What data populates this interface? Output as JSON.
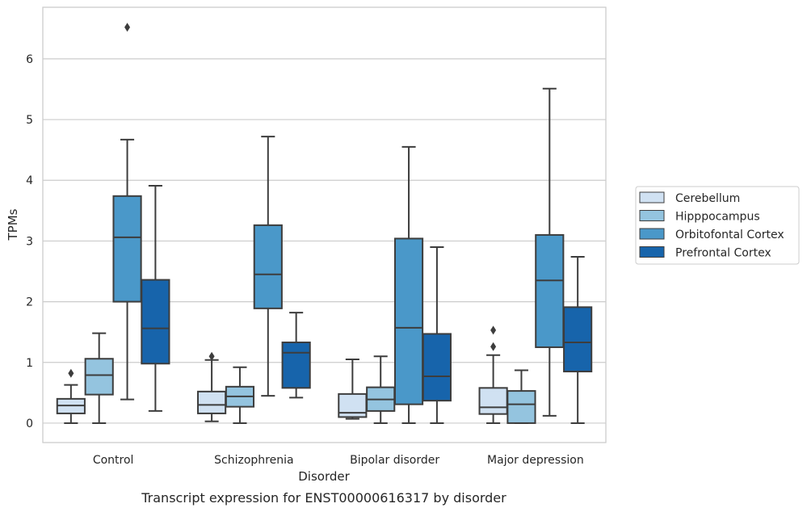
{
  "chart_data": {
    "type": "box",
    "title": "",
    "caption": "Transcript expression for ENST00000616317 by disorder",
    "xlabel": "Disorder",
    "ylabel": "TPMs",
    "ylim": [
      -0.32,
      6.85
    ],
    "yticks": [
      "0",
      "1",
      "2",
      "3",
      "4",
      "5",
      "6"
    ],
    "grid": true,
    "legend_position": "right",
    "categories": [
      "Control",
      "Schizophrenia",
      "Bipolar disorder",
      "Major depression"
    ],
    "series": [
      {
        "name": "Cerebellum",
        "color": "#d0e1f2",
        "boxes": [
          {
            "whisker_low": 0.0,
            "q1": 0.16,
            "median": 0.29,
            "q3": 0.4,
            "whisker_high": 0.63,
            "outliers": [
              0.82
            ]
          },
          {
            "whisker_low": 0.03,
            "q1": 0.16,
            "median": 0.3,
            "q3": 0.52,
            "whisker_high": 1.04,
            "outliers": [
              1.1
            ]
          },
          {
            "whisker_low": 0.07,
            "q1": 0.1,
            "median": 0.17,
            "q3": 0.48,
            "whisker_high": 1.05,
            "outliers": []
          },
          {
            "whisker_low": 0.0,
            "q1": 0.15,
            "median": 0.26,
            "q3": 0.58,
            "whisker_high": 1.12,
            "outliers": [
              1.26,
              1.53
            ]
          }
        ]
      },
      {
        "name": "Hipppocampus",
        "color": "#94c4df",
        "boxes": [
          {
            "whisker_low": 0.0,
            "q1": 0.47,
            "median": 0.79,
            "q3": 1.06,
            "whisker_high": 1.48,
            "outliers": []
          },
          {
            "whisker_low": 0.0,
            "q1": 0.27,
            "median": 0.44,
            "q3": 0.6,
            "whisker_high": 0.92,
            "outliers": []
          },
          {
            "whisker_low": 0.0,
            "q1": 0.2,
            "median": 0.39,
            "q3": 0.59,
            "whisker_high": 1.1,
            "outliers": []
          },
          {
            "whisker_low": 0.0,
            "q1": 0.0,
            "median": 0.31,
            "q3": 0.53,
            "whisker_high": 0.87,
            "outliers": []
          }
        ]
      },
      {
        "name": "Orbitofontal Cortex",
        "color": "#4a98c9",
        "boxes": [
          {
            "whisker_low": 0.39,
            "q1": 2.0,
            "median": 3.06,
            "q3": 3.74,
            "whisker_high": 4.67,
            "outliers": [
              6.52
            ]
          },
          {
            "whisker_low": 0.45,
            "q1": 1.89,
            "median": 2.45,
            "q3": 3.26,
            "whisker_high": 4.72,
            "outliers": []
          },
          {
            "whisker_low": 0.0,
            "q1": 0.31,
            "median": 1.57,
            "q3": 3.04,
            "whisker_high": 4.55,
            "outliers": []
          },
          {
            "whisker_low": 0.12,
            "q1": 1.25,
            "median": 2.35,
            "q3": 3.1,
            "whisker_high": 5.51,
            "outliers": []
          }
        ]
      },
      {
        "name": "Prefrontal Cortex",
        "color": "#1764ab",
        "boxes": [
          {
            "whisker_low": 0.2,
            "q1": 0.98,
            "median": 1.56,
            "q3": 2.36,
            "whisker_high": 3.91,
            "outliers": []
          },
          {
            "whisker_low": 0.42,
            "q1": 0.58,
            "median": 1.16,
            "q3": 1.33,
            "whisker_high": 1.82,
            "outliers": []
          },
          {
            "whisker_low": 0.0,
            "q1": 0.37,
            "median": 0.77,
            "q3": 1.47,
            "whisker_high": 2.9,
            "outliers": []
          },
          {
            "whisker_low": 0.0,
            "q1": 0.85,
            "median": 1.33,
            "q3": 1.91,
            "whisker_high": 2.74,
            "outliers": []
          }
        ]
      }
    ]
  }
}
